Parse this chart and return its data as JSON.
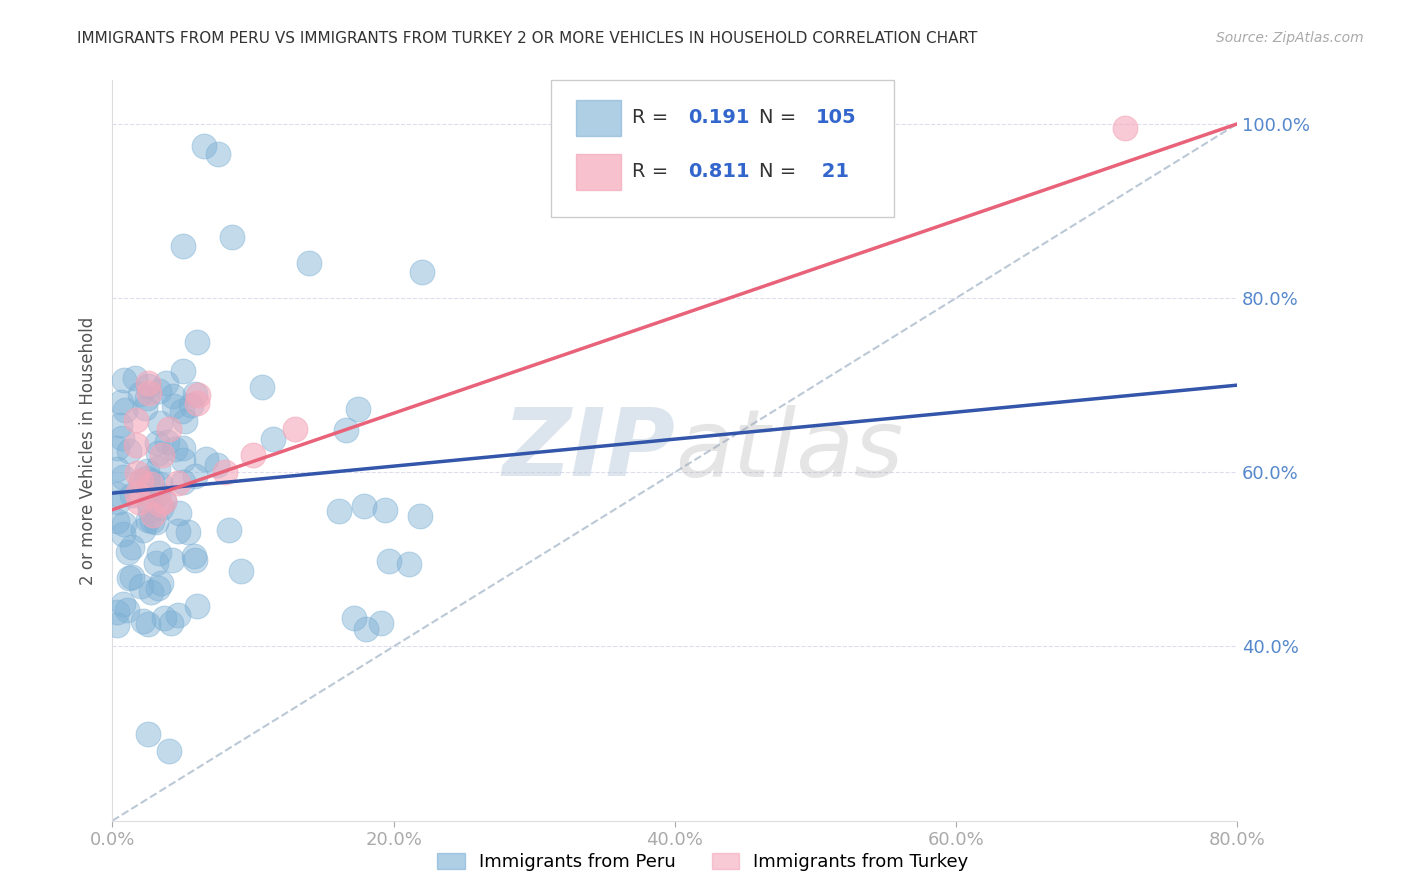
{
  "title": "IMMIGRANTS FROM PERU VS IMMIGRANTS FROM TURKEY 2 OR MORE VEHICLES IN HOUSEHOLD CORRELATION CHART",
  "source": "Source: ZipAtlas.com",
  "ylabel": "2 or more Vehicles in Household",
  "xlim": [
    0.0,
    0.8
  ],
  "ylim": [
    0.2,
    1.05
  ],
  "xticks": [
    0.0,
    0.2,
    0.4,
    0.6,
    0.8
  ],
  "xtick_labels": [
    "0.0%",
    "20.0%",
    "40.0%",
    "60.0%",
    "80.0%"
  ],
  "yticks": [
    0.4,
    0.6,
    0.8,
    1.0
  ],
  "ytick_labels": [
    "40.0%",
    "60.0%",
    "80.0%",
    "100.0%"
  ],
  "peru_color": "#7BAFD4",
  "turkey_color": "#F4A7B9",
  "peru_R": 0.191,
  "peru_N": 105,
  "turkey_R": 0.811,
  "turkey_N": 21,
  "legend_peru_label": "Immigrants from Peru",
  "legend_turkey_label": "Immigrants from Turkey",
  "peru_line_color": "#3355AA",
  "turkey_line_color": "#E8637A",
  "ref_line_color": "#AABBCC",
  "background_color": "#FFFFFF",
  "grid_color": "#DDDDEE",
  "title_color": "#333333",
  "axis_label_color": "#555555",
  "tick_label_color": "#5588CC",
  "watermark_color_zip": "#BBCCDD",
  "watermark_color_atlas": "#AAAAAA",
  "peru_line_x0": 0.0,
  "peru_line_y0": 0.576,
  "peru_line_x1": 0.8,
  "peru_line_y1": 0.7,
  "turkey_line_x0": 0.0,
  "turkey_line_y0": 0.557,
  "turkey_line_x1": 0.8,
  "turkey_line_y1": 1.0,
  "ref_line_x0": 0.0,
  "ref_line_y0": 0.2,
  "ref_line_x1": 0.8,
  "ref_line_y1": 1.0
}
